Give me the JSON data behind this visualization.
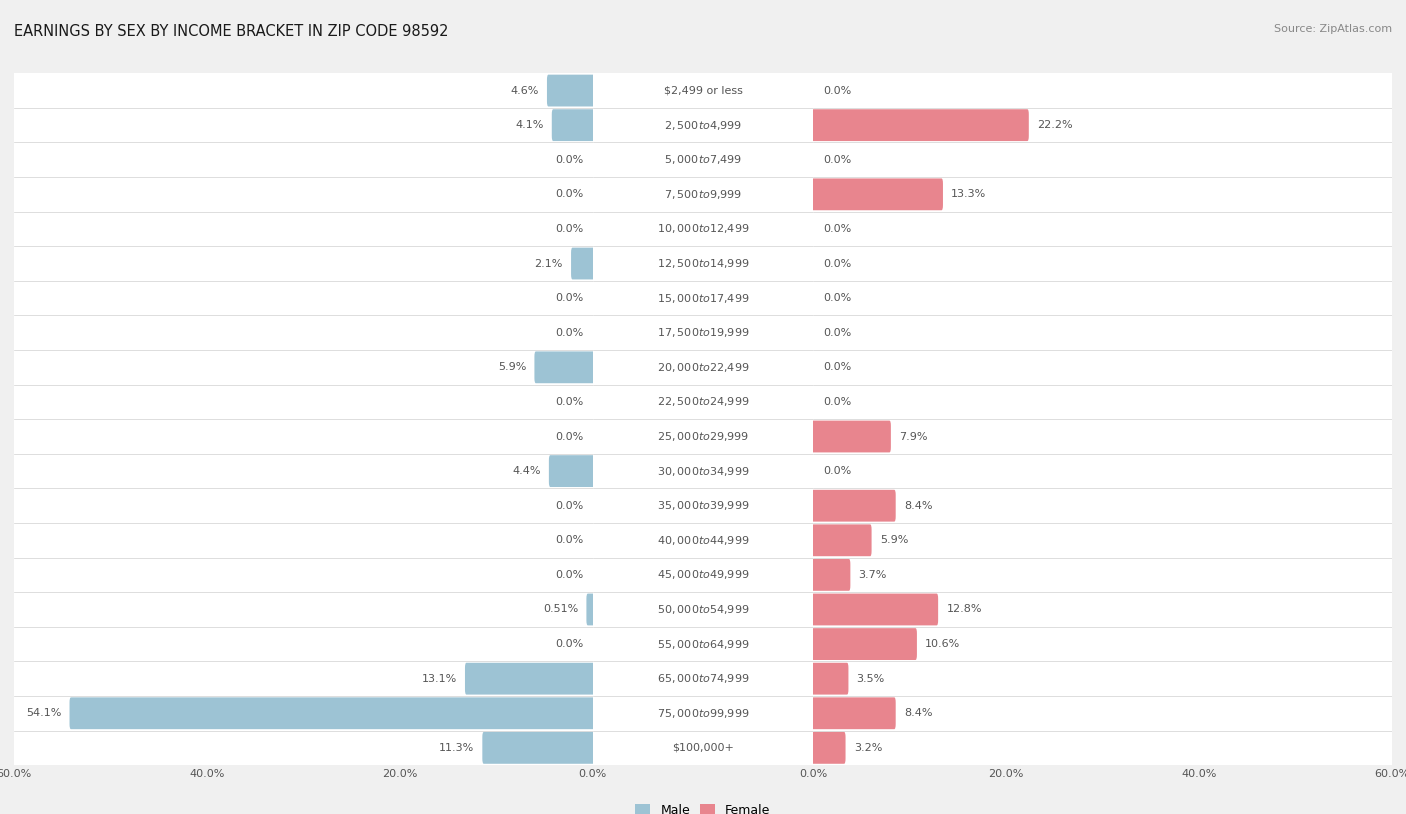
{
  "title": "EARNINGS BY SEX BY INCOME BRACKET IN ZIP CODE 98592",
  "source": "Source: ZipAtlas.com",
  "categories": [
    "$2,499 or less",
    "$2,500 to $4,999",
    "$5,000 to $7,499",
    "$7,500 to $9,999",
    "$10,000 to $12,499",
    "$12,500 to $14,999",
    "$15,000 to $17,499",
    "$17,500 to $19,999",
    "$20,000 to $22,499",
    "$22,500 to $24,999",
    "$25,000 to $29,999",
    "$30,000 to $34,999",
    "$35,000 to $39,999",
    "$40,000 to $44,999",
    "$45,000 to $49,999",
    "$50,000 to $54,999",
    "$55,000 to $64,999",
    "$65,000 to $74,999",
    "$75,000 to $99,999",
    "$100,000+"
  ],
  "male_values": [
    4.6,
    4.1,
    0.0,
    0.0,
    0.0,
    2.1,
    0.0,
    0.0,
    5.9,
    0.0,
    0.0,
    4.4,
    0.0,
    0.0,
    0.0,
    0.51,
    0.0,
    13.1,
    54.1,
    11.3
  ],
  "female_values": [
    0.0,
    22.2,
    0.0,
    13.3,
    0.0,
    0.0,
    0.0,
    0.0,
    0.0,
    0.0,
    7.9,
    0.0,
    8.4,
    5.9,
    3.7,
    12.8,
    10.6,
    3.5,
    8.4,
    3.2
  ],
  "male_color": "#9dc3d4",
  "female_color": "#e8858e",
  "label_color": "#555555",
  "bg_color": "#f0f0f0",
  "row_bg_color": "#ffffff",
  "row_alt_color": "#f7f7f7",
  "axis_max": 60.0,
  "bar_height": 0.62,
  "title_fontsize": 10.5,
  "source_fontsize": 8,
  "label_fontsize": 8,
  "cat_fontsize": 8,
  "tick_fontsize": 8,
  "legend_fontsize": 9
}
